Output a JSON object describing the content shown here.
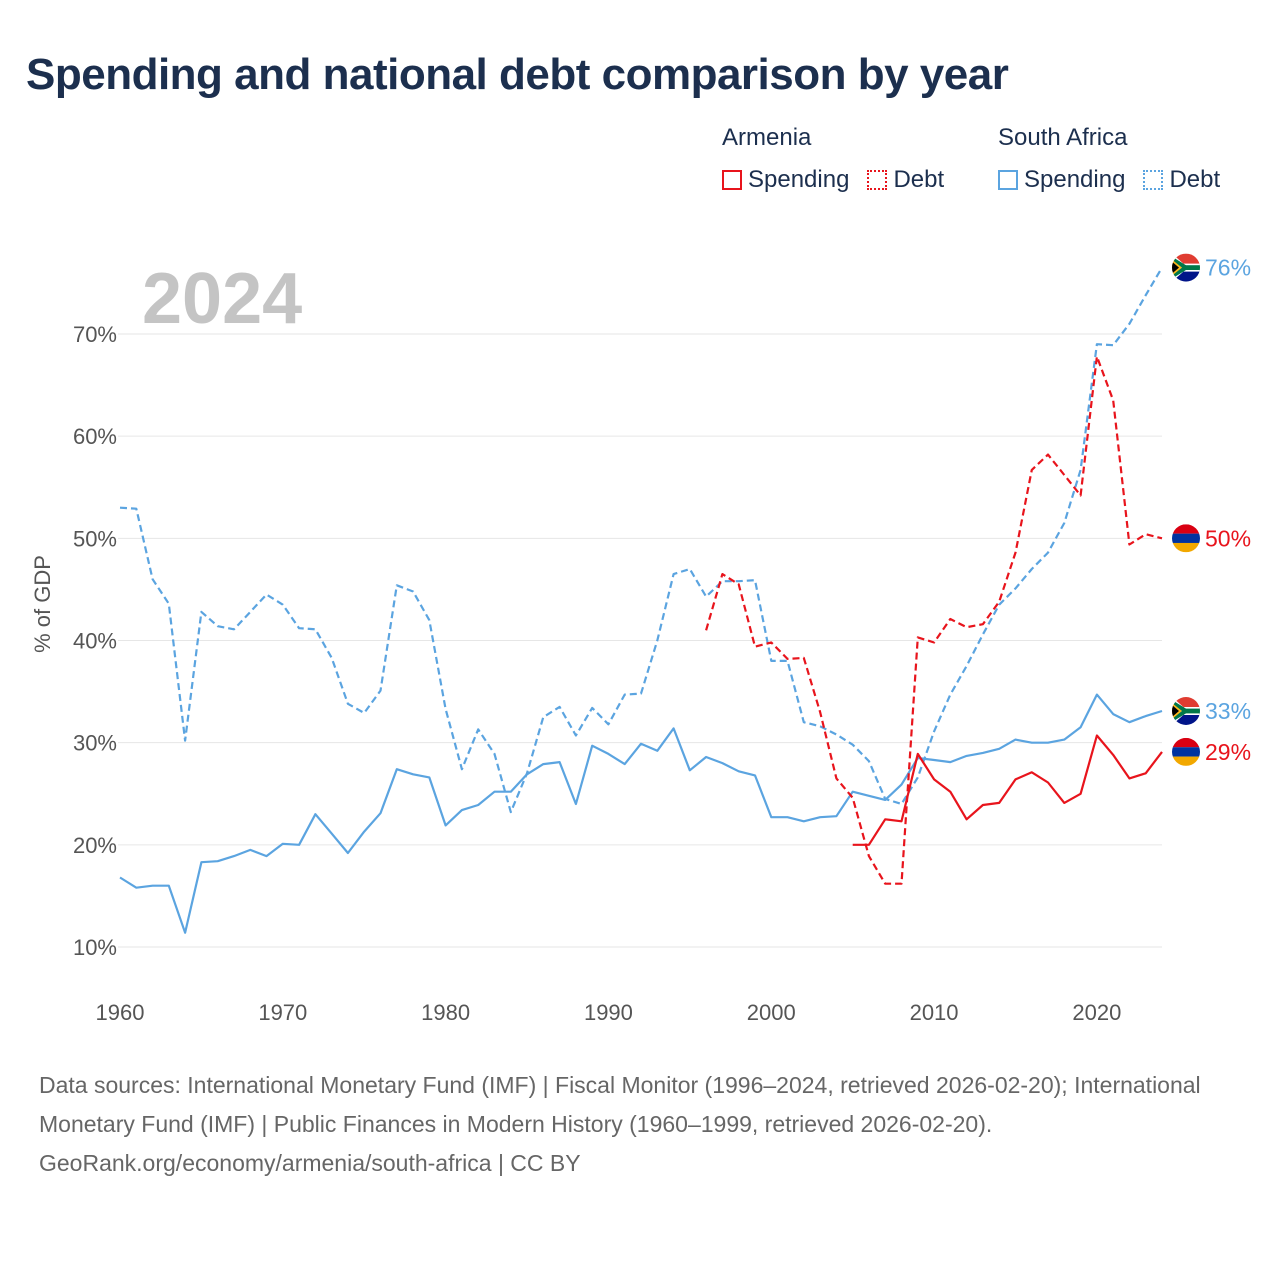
{
  "title": "Spending and national debt comparison by year",
  "legend": {
    "armenia": {
      "country": "Armenia",
      "spending": "Spending",
      "debt": "Debt"
    },
    "south_africa": {
      "country": "South Africa",
      "spending": "Spending",
      "debt": "Debt"
    }
  },
  "colors": {
    "armenia": "#e8141c",
    "south_africa": "#5ba4e0",
    "grid": "#e6e6e6",
    "tick": "#555555",
    "year": "#c4c4c4"
  },
  "footer": {
    "sources": "Data sources: International Monetary Fund (IMF) | Fiscal Monitor (1996–2024, retrieved 2026-02-20); International Monetary Fund (IMF) | Public Finances in Modern History (1960–1999, retrieved 2026-02-20).",
    "credit": "GeoRank.org/economy/armenia/south-africa | CC BY"
  },
  "chart_data": {
    "type": "line",
    "title": "Spending and national debt comparison by year",
    "year_label": "2024",
    "xlabel": "",
    "ylabel": "% of GDP",
    "xlim": [
      1960,
      2024
    ],
    "ylim": [
      10,
      76
    ],
    "x_ticks": [
      1960,
      1970,
      1980,
      1990,
      2000,
      2010,
      2020
    ],
    "y_ticks": [
      10,
      20,
      30,
      40,
      50,
      60,
      70
    ],
    "y_tick_labels": [
      "10%",
      "20%",
      "30%",
      "40%",
      "50%",
      "60%",
      "70%"
    ],
    "grid": true,
    "series": [
      {
        "name": "South Africa Debt",
        "country": "south_africa",
        "style": "dashed",
        "end_label": "76%",
        "start_year": 1960,
        "values": [
          53,
          52.9,
          46,
          43.6,
          30.2,
          42.8,
          41.4,
          41.1,
          42.8,
          44.5,
          43.5,
          41.2,
          41.1,
          38.3,
          33.8,
          32.9,
          35.1,
          45.4,
          44.8,
          42,
          33.3,
          27.4,
          31.3,
          28.9,
          23.2,
          27,
          32.5,
          33.5,
          30.7,
          33.4,
          31.8,
          34.7,
          34.8,
          40,
          46.5,
          47,
          44.3,
          45.8,
          45.8,
          45.9,
          38,
          38,
          32,
          31.6,
          30.8,
          29.8,
          28.2,
          24.5,
          24,
          26.6,
          31.1,
          34.7,
          37.5,
          40.6,
          43.5,
          45.1,
          47,
          48.6,
          51.5,
          56.7,
          69,
          68.9,
          71,
          73.8,
          76.5
        ]
      },
      {
        "name": "South Africa Spending",
        "country": "south_africa",
        "style": "solid",
        "end_label": "33%",
        "start_year": 1960,
        "values": [
          16.8,
          15.8,
          16,
          16,
          11.4,
          18.3,
          18.4,
          18.9,
          19.5,
          18.9,
          20.1,
          20,
          23,
          21.1,
          19.2,
          21.3,
          23.1,
          27.4,
          26.9,
          26.6,
          21.9,
          23.4,
          23.9,
          25.2,
          25.2,
          26.9,
          27.9,
          28.1,
          24,
          29.7,
          28.9,
          27.9,
          29.9,
          29.2,
          31.4,
          27.3,
          28.6,
          28,
          27.2,
          26.8,
          22.7,
          22.7,
          22.3,
          22.7,
          22.8,
          25.2,
          24.8,
          24.4,
          25.9,
          28.5,
          28.3,
          28.1,
          28.7,
          29,
          29.4,
          30.3,
          30,
          30,
          30.3,
          31.5,
          34.7,
          32.8,
          32,
          32.6,
          33.1
        ]
      },
      {
        "name": "Armenia Debt",
        "country": "armenia",
        "style": "dashed",
        "end_label": "50%",
        "start_year": 1996,
        "values": [
          41,
          46.5,
          45.5,
          39.4,
          39.8,
          38.2,
          38.3,
          33,
          26.5,
          24.6,
          18.9,
          16.2,
          16.2,
          40.3,
          39.8,
          42.1,
          41.3,
          41.6,
          43.8,
          48.6,
          56.7,
          58.2,
          56.2,
          54.2,
          67.8,
          63.5,
          49.4,
          50.4,
          50
        ]
      },
      {
        "name": "Armenia Spending",
        "country": "armenia",
        "style": "solid",
        "end_label": "29%",
        "start_year": 2005,
        "values": [
          20,
          20,
          22.5,
          22.3,
          28.9,
          26.4,
          25.2,
          22.5,
          23.9,
          24.1,
          26.4,
          27.1,
          26.1,
          24.1,
          25,
          30.7,
          28.8,
          26.5,
          27,
          29.1
        ]
      }
    ]
  }
}
